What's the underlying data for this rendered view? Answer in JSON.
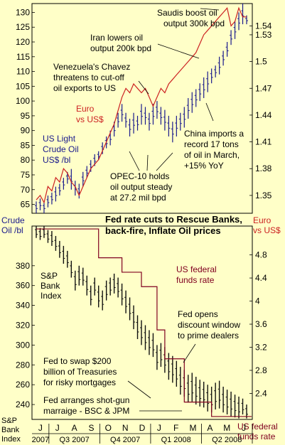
{
  "chart_data": [
    {
      "panel": "top",
      "type": "line",
      "title": "",
      "ylim_left": [
        62,
        133
      ],
      "ylim_right": [
        1.33,
        1.565
      ],
      "left_ticks": [
        65,
        70,
        75,
        80,
        85,
        90,
        95,
        100,
        105,
        110,
        115,
        120,
        125,
        130
      ],
      "right_ticks": [
        "1.35",
        "1.38",
        "1.41",
        "1.44",
        "1.47",
        "1.5",
        "1.53",
        "1.54"
      ],
      "left_axis_label": "Crude Oil /bl",
      "right_axis_label": "Euro vs US$",
      "series": [
        {
          "name": "US Light Crude Oil US$ /bl",
          "color": "#1a1a8c",
          "style": "ohlc",
          "x_weeks": [
            0,
            1,
            2,
            3,
            4,
            5,
            6,
            7,
            8,
            9,
            10,
            11,
            12,
            13,
            14,
            15,
            16,
            17,
            18,
            19,
            20,
            21,
            22,
            23,
            24,
            25,
            26,
            27,
            28,
            29,
            30,
            31,
            32,
            33,
            34,
            35,
            36,
            37,
            38,
            39,
            40,
            41,
            42,
            43,
            44,
            45,
            46,
            47,
            48,
            49,
            50,
            51,
            52,
            53,
            54
          ],
          "highs": [
            66,
            67,
            66,
            68,
            69,
            71,
            72,
            74,
            76,
            77,
            73,
            72,
            76,
            78,
            80,
            82,
            83,
            86,
            88,
            90,
            93,
            96,
            99,
            96,
            94,
            96,
            95,
            99,
            98,
            96,
            99,
            100,
            98,
            97,
            95,
            93,
            95,
            96,
            98,
            101,
            103,
            104,
            106,
            108,
            110,
            111,
            112,
            115,
            117,
            120,
            124,
            127,
            130,
            133,
            129
          ],
          "lows": [
            62,
            63,
            62,
            64,
            65,
            66,
            68,
            70,
            72,
            70,
            68,
            67,
            71,
            74,
            76,
            78,
            80,
            82,
            84,
            85,
            88,
            91,
            93,
            91,
            88,
            89,
            90,
            92,
            92,
            90,
            92,
            94,
            92,
            90,
            88,
            86,
            88,
            90,
            91,
            94,
            96,
            98,
            100,
            101,
            103,
            106,
            108,
            109,
            112,
            115,
            119,
            121,
            124,
            126,
            126
          ]
        },
        {
          "name": "Euro vs US$",
          "color": "#cc2222",
          "style": "line",
          "values": [
            1.345,
            1.35,
            1.342,
            1.36,
            1.355,
            1.37,
            1.365,
            1.38,
            1.375,
            1.365,
            1.36,
            1.35,
            1.36,
            1.37,
            1.38,
            1.385,
            1.39,
            1.4,
            1.41,
            1.42,
            1.43,
            1.445,
            1.46,
            1.47,
            1.465,
            1.475,
            1.47,
            1.465,
            1.47,
            1.46,
            1.45,
            1.46,
            1.47,
            1.465,
            1.475,
            1.48,
            1.485,
            1.49,
            1.495,
            1.5,
            1.505,
            1.51,
            1.52,
            1.53,
            1.535,
            1.54,
            1.545,
            1.55,
            1.555,
            1.56,
            1.54,
            1.545,
            1.56,
            1.55,
            1.55
          ]
        }
      ],
      "annotations": [
        "Saudis boost oil output 300k bpd",
        "Iran lowers oil output 200k bpd",
        "Venezuela's Chavez threatens to cut-off oil exports to US",
        "China imports a record 17 tons of oil in March, +15% YoY",
        "OPEC-10 holds oil output steady at 27.2 mil bpd"
      ],
      "inline_labels": {
        "crude": [
          "US Light",
          "Crude Oil",
          "US$ /bl"
        ],
        "euro": [
          "Euro",
          "vs US$"
        ]
      }
    },
    {
      "panel": "bottom",
      "type": "line",
      "title": "Fed rate cuts to Rescue Banks, back-fire, Inflate Oil prices",
      "ylim_left": [
        225,
        420
      ],
      "ylim_right": [
        1.95,
        5.3
      ],
      "left_ticks": [
        240,
        260,
        280,
        300,
        320,
        340,
        360,
        380
      ],
      "right_ticks": [
        "2.4",
        "2.8",
        "3.2",
        "3.6",
        "4",
        "4.4",
        "4.8"
      ],
      "left_axis_label": "S&P Bank Index",
      "right_axis_label": "US federal funds rate",
      "series": [
        {
          "name": "S&P Bank Index",
          "color": "#111111",
          "style": "ohlc",
          "highs": [
            420,
            418,
            420,
            416,
            415,
            410,
            405,
            400,
            395,
            385,
            375,
            380,
            378,
            370,
            360,
            368,
            360,
            355,
            365,
            368,
            372,
            368,
            362,
            355,
            348,
            340,
            330,
            325,
            320,
            315,
            312,
            300,
            302,
            298,
            292,
            289,
            284,
            278,
            275,
            270,
            272,
            268,
            265,
            263,
            260,
            258,
            262,
            264,
            258,
            255,
            253,
            250,
            248,
            246,
            240
          ],
          "lows": [
            408,
            406,
            408,
            403,
            400,
            395,
            388,
            382,
            378,
            368,
            355,
            360,
            360,
            350,
            340,
            350,
            338,
            335,
            345,
            350,
            352,
            348,
            340,
            332,
            325,
            316,
            306,
            300,
            295,
            290,
            288,
            275,
            278,
            272,
            265,
            262,
            258,
            250,
            248,
            242,
            243,
            240,
            238,
            237,
            233,
            232,
            235,
            236,
            232,
            230,
            228,
            227,
            226,
            230,
            226
          ]
        },
        {
          "name": "US federal funds rate",
          "color": "#800020",
          "style": "step",
          "steps": [
            [
              0,
              5.25
            ],
            [
              16,
              4.75
            ],
            [
              22,
              4.5
            ],
            [
              27,
              4.25
            ],
            [
              31,
              3.5
            ],
            [
              33,
              3.0
            ],
            [
              38,
              2.25
            ],
            [
              45,
              2.0
            ],
            [
              54,
              2.0
            ]
          ]
        }
      ],
      "annotations": [
        "Fed opens discount window to prime dealers",
        "Fed to swap $200 billion of Treasuries for risky mortgages",
        "Fed arranges shot-gun marraige - BSC & JPM"
      ],
      "inline_labels": {
        "spx": [
          "S&P",
          "Bank",
          "Index"
        ],
        "fed": [
          "US federal",
          "funds rate"
        ]
      }
    }
  ],
  "x_axis": {
    "months": [
      "J",
      "J",
      "A",
      "S",
      "O",
      "N",
      "D",
      "J",
      "F",
      "M",
      "A",
      "M",
      "J"
    ],
    "periods": [
      "2007",
      "Q3 2007",
      "Q4 2007",
      "Q1 2008",
      "Q2 2008"
    ]
  },
  "title_lines": [
    "Fed rate cuts to Rescue Banks,",
    "back-fire, Inflate Oil prices"
  ],
  "left_label_top": [
    "Crude",
    "Oil /bl"
  ],
  "right_label_top": [
    "Euro",
    "vs US$"
  ],
  "left_label_bottom": [
    "S&P",
    "Bank",
    "Index"
  ],
  "right_label_bottom": [
    "US federal",
    "funds rate"
  ],
  "ann": {
    "saudis": [
      "Saudis boost oil",
      "output 300k bpd"
    ],
    "iran": [
      "Iran lowers oil",
      "output 200k bpd"
    ],
    "venezuela": [
      "Venezuela's Chavez",
      "threatens to cut-off",
      "oil exports to US"
    ],
    "china": [
      "China imports a",
      "record 17 tons",
      "of oil in March,",
      "+15% YoY"
    ],
    "opec": [
      "OPEC-10 holds",
      "oil output steady",
      "at 27.2 mil bpd"
    ],
    "discount": [
      "Fed opens",
      "discount window",
      "to prime dealers"
    ],
    "swap": [
      "Fed to swap $200",
      "billion of Treasuries",
      "for risky mortgages"
    ],
    "shotgun": [
      "Fed arranges shot-gun",
      "marraige - BSC & JPM"
    ]
  },
  "colors": {
    "background": "#ffffc8",
    "crude": "#1a1a8c",
    "euro": "#cc2222",
    "spx": "#111111",
    "fed": "#800020",
    "axis": "#000000"
  }
}
